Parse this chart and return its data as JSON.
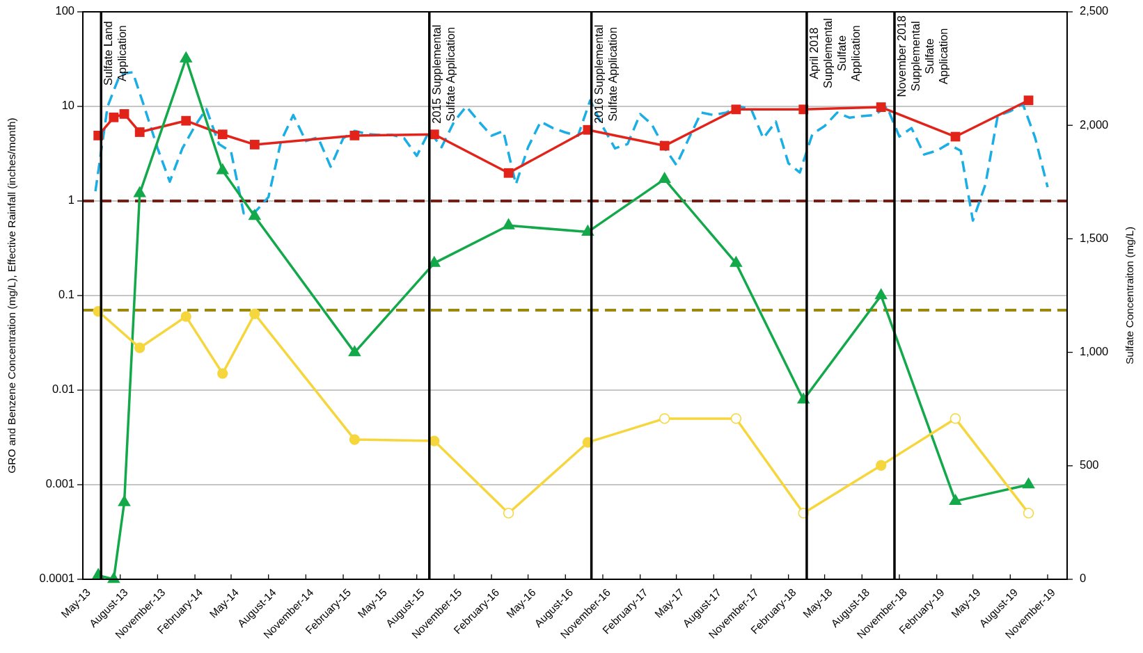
{
  "chart_data": {
    "type": "line",
    "ylabel": "GRO and Benzene Concentration (mg/L), Effective Rainfall (inches/month)",
    "y2label": "Sulfate Concentraiton (mg/L)",
    "log": "y",
    "grid": "y",
    "xlim": [
      "2013-05-01",
      "2019-12-19"
    ],
    "xticks": [
      {
        "value": "2013-05-01",
        "label": "May-13"
      },
      {
        "value": "2013-08-01",
        "label": "August-13"
      },
      {
        "value": "2013-11-01",
        "label": "November-13"
      },
      {
        "value": "2014-02-01",
        "label": "February-14"
      },
      {
        "value": "2014-05-01",
        "label": "May-14"
      },
      {
        "value": "2014-08-01",
        "label": "August-14"
      },
      {
        "value": "2014-11-01",
        "label": "November-14"
      },
      {
        "value": "2015-02-01",
        "label": "February-15"
      },
      {
        "value": "2015-05-01",
        "label": "May-15"
      },
      {
        "value": "2015-08-01",
        "label": "August-15"
      },
      {
        "value": "2015-11-01",
        "label": "November-15"
      },
      {
        "value": "2016-02-01",
        "label": "February-16"
      },
      {
        "value": "2016-05-01",
        "label": "May-16"
      },
      {
        "value": "2016-08-01",
        "label": "August-16"
      },
      {
        "value": "2016-11-01",
        "label": "November-16"
      },
      {
        "value": "2017-02-01",
        "label": "February-17"
      },
      {
        "value": "2017-05-01",
        "label": "May-17"
      },
      {
        "value": "2017-08-01",
        "label": "August-17"
      },
      {
        "value": "2017-11-01",
        "label": "November-17"
      },
      {
        "value": "2018-02-01",
        "label": "February-18"
      },
      {
        "value": "2018-05-01",
        "label": "May-18"
      },
      {
        "value": "2018-08-01",
        "label": "August-18"
      },
      {
        "value": "2018-11-01",
        "label": "November-18"
      },
      {
        "value": "2019-02-01",
        "label": "February-19"
      },
      {
        "value": "2019-05-01",
        "label": "May-19"
      },
      {
        "value": "2019-08-01",
        "label": "August-19"
      },
      {
        "value": "2019-11-01",
        "label": "November-19"
      }
    ],
    "ylim": [
      0.0001,
      100
    ],
    "yticks": [
      0.0001,
      0.001,
      0.01,
      0.1,
      1,
      10,
      100
    ],
    "y2lim": [
      0,
      2500
    ],
    "y2ticks": [
      0,
      500,
      {
        "value": 1000,
        "label": "1,000"
      },
      {
        "value": 1500,
        "label": "1,500"
      },
      {
        "value": 2000,
        "label": "2,000"
      },
      {
        "value": 2500,
        "label": "2,500"
      }
    ],
    "ref_lines": [
      {
        "axis": "x",
        "value": "2013-06-15",
        "label": "Sulfate Land\nApplication",
        "color": "#000000"
      },
      {
        "axis": "x",
        "value": "2015-09-01",
        "label": "2015 Supplemental\nSulfate Application",
        "color": "#000000"
      },
      {
        "axis": "x",
        "value": "2016-10-04",
        "label": "2016 Supplemental\nSulfate Application",
        "color": "#000000"
      },
      {
        "axis": "x",
        "value": "2018-03-18",
        "label": "April 2018\nSupplemental\nSulfate\nApplication",
        "color": "#000000"
      },
      {
        "axis": "x",
        "value": "2018-10-20",
        "label": "November 2018\nSupplemental\nSulfate\nApplication",
        "color": "#000000"
      },
      {
        "axis": "y",
        "value": 1,
        "color": "#7b1c12",
        "line_style": "dashed"
      },
      {
        "axis": "y",
        "value": 0.07,
        "color": "#9c880c",
        "line_style": "dashed"
      }
    ],
    "series": [
      {
        "color": "#1aaee5",
        "line_style": "dashed",
        "marker": "none",
        "x": [
          "2013-06",
          "2013-07",
          "2013-08",
          "2013-09",
          "2013-10",
          "2013-11",
          "2013-12",
          "2014-01",
          "2014-02",
          "2014-03",
          "2014-04",
          "2014-05",
          "2014-06",
          "2014-07",
          "2014-08",
          "2014-09",
          "2014-10",
          "2014-11",
          "2014-12",
          "2015-01",
          "2015-02",
          "2015-03",
          "2015-04",
          "2015-05",
          "2015-06",
          "2015-07",
          "2015-08",
          "2015-09",
          "2015-10",
          "2015-11",
          "2015-12",
          "2016-01",
          "2016-02",
          "2016-03",
          "2016-04",
          "2016-05",
          "2016-06",
          "2016-07",
          "2016-08",
          "2016-09",
          "2016-10",
          "2016-11",
          "2016-12",
          "2017-01",
          "2017-02",
          "2017-03",
          "2017-04",
          "2017-05",
          "2017-06",
          "2017-07",
          "2017-08",
          "2017-09",
          "2017-10",
          "2017-11",
          "2017-12",
          "2018-01",
          "2018-02",
          "2018-03",
          "2018-04",
          "2018-05",
          "2018-06",
          "2018-07",
          "2018-08",
          "2018-09",
          "2018-10",
          "2018-11",
          "2018-12",
          "2019-01",
          "2019-02",
          "2019-03",
          "2019-04",
          "2019-05",
          "2019-06",
          "2019-07",
          "2019-08",
          "2019-09",
          "2019-10",
          "2019-11"
        ],
        "values": [
          1.27,
          10,
          22,
          23,
          9.4,
          3.6,
          1.6,
          3.6,
          6.2,
          9.4,
          4.0,
          3.3,
          0.74,
          0.78,
          1.1,
          4.3,
          8.1,
          4.3,
          4.7,
          2.3,
          4.6,
          5.5,
          5.1,
          5.0,
          5.0,
          4.6,
          3.0,
          5.5,
          3.7,
          6.9,
          10,
          6.9,
          4.9,
          5.5,
          1.5,
          3.7,
          6.9,
          5.9,
          5.3,
          4.9,
          11.6,
          6.1,
          3.6,
          4.0,
          8.3,
          6.5,
          3.7,
          2.4,
          4.6,
          8.6,
          8.1,
          8.6,
          10,
          9.4,
          4.6,
          6.9,
          2.5,
          2.0,
          5.1,
          6.2,
          8.6,
          7.6,
          7.9,
          8.1,
          10,
          4.8,
          5.9,
          3.1,
          3.4,
          4.0,
          3.4,
          0.62,
          1.5,
          7.9,
          8.9,
          10.6,
          4.7,
          1.4
        ]
      },
      {
        "color": "#e2231a",
        "axis": "y2",
        "marker": "square",
        "line_style": "solid",
        "x": [
          "2013-06-08",
          "2013-07-16",
          "2013-08-11",
          "2013-09-18",
          "2014-01-10",
          "2014-04-10",
          "2014-06-28",
          "2015-03-01",
          "2015-09-13",
          "2016-03-14",
          "2016-09-25",
          "2017-04-02",
          "2017-09-25",
          "2018-03-10",
          "2018-09-17",
          "2019-03-19",
          "2019-09-15"
        ],
        "values": [
          1955,
          2035,
          2050,
          1970,
          2020,
          1960,
          1915,
          1955,
          1960,
          1790,
          1980,
          1910,
          2070,
          2070,
          2080,
          1950,
          2110
        ]
      },
      {
        "color": "#13a84a",
        "marker": "triangle",
        "line_style": "solid",
        "x": [
          "2013-06-08",
          "2013-07-16",
          "2013-08-11",
          "2013-09-18",
          "2014-01-10",
          "2014-04-10",
          "2014-06-28",
          "2015-03-01",
          "2015-09-13",
          "2016-03-14",
          "2016-09-25",
          "2017-04-02",
          "2017-09-25",
          "2018-03-10",
          "2018-09-17",
          "2019-03-19",
          "2019-09-15"
        ],
        "values": [
          0.00011,
          0.0001,
          0.00065,
          1.2,
          32,
          2.1,
          0.69,
          0.025,
          0.22,
          0.55,
          0.47,
          1.7,
          0.22,
          0.0079,
          0.1,
          0.00067,
          0.001
        ]
      },
      {
        "color": "#f5d63d",
        "marker": "circle",
        "line_style": "solid",
        "x": [
          "2013-06-08",
          "2013-09-18",
          "2014-01-10",
          "2014-04-10",
          "2014-06-28",
          "2015-03-01",
          "2015-09-13",
          "2016-03-14",
          "2016-09-25",
          "2017-04-02",
          "2017-09-25",
          "2018-03-10",
          "2018-09-17",
          "2019-03-19",
          "2019-09-15"
        ],
        "values": [
          0.068,
          0.028,
          0.06,
          0.015,
          0.064,
          0.003,
          0.0029,
          0.0005,
          0.0028,
          0.005,
          0.005,
          0.0005,
          0.0016,
          0.005,
          0.0005
        ],
        "colors": [
          "#f5d63d",
          "#f5d63d",
          "#f5d63d",
          "#f5d63d",
          "#f5d63d",
          "#f5d63d",
          "#f5d63d",
          "#ffffff",
          "#f5d63d",
          "#ffffff",
          "#ffffff",
          "#ffffff",
          "#f5d63d",
          "#ffffff",
          "#ffffff"
        ]
      }
    ]
  }
}
